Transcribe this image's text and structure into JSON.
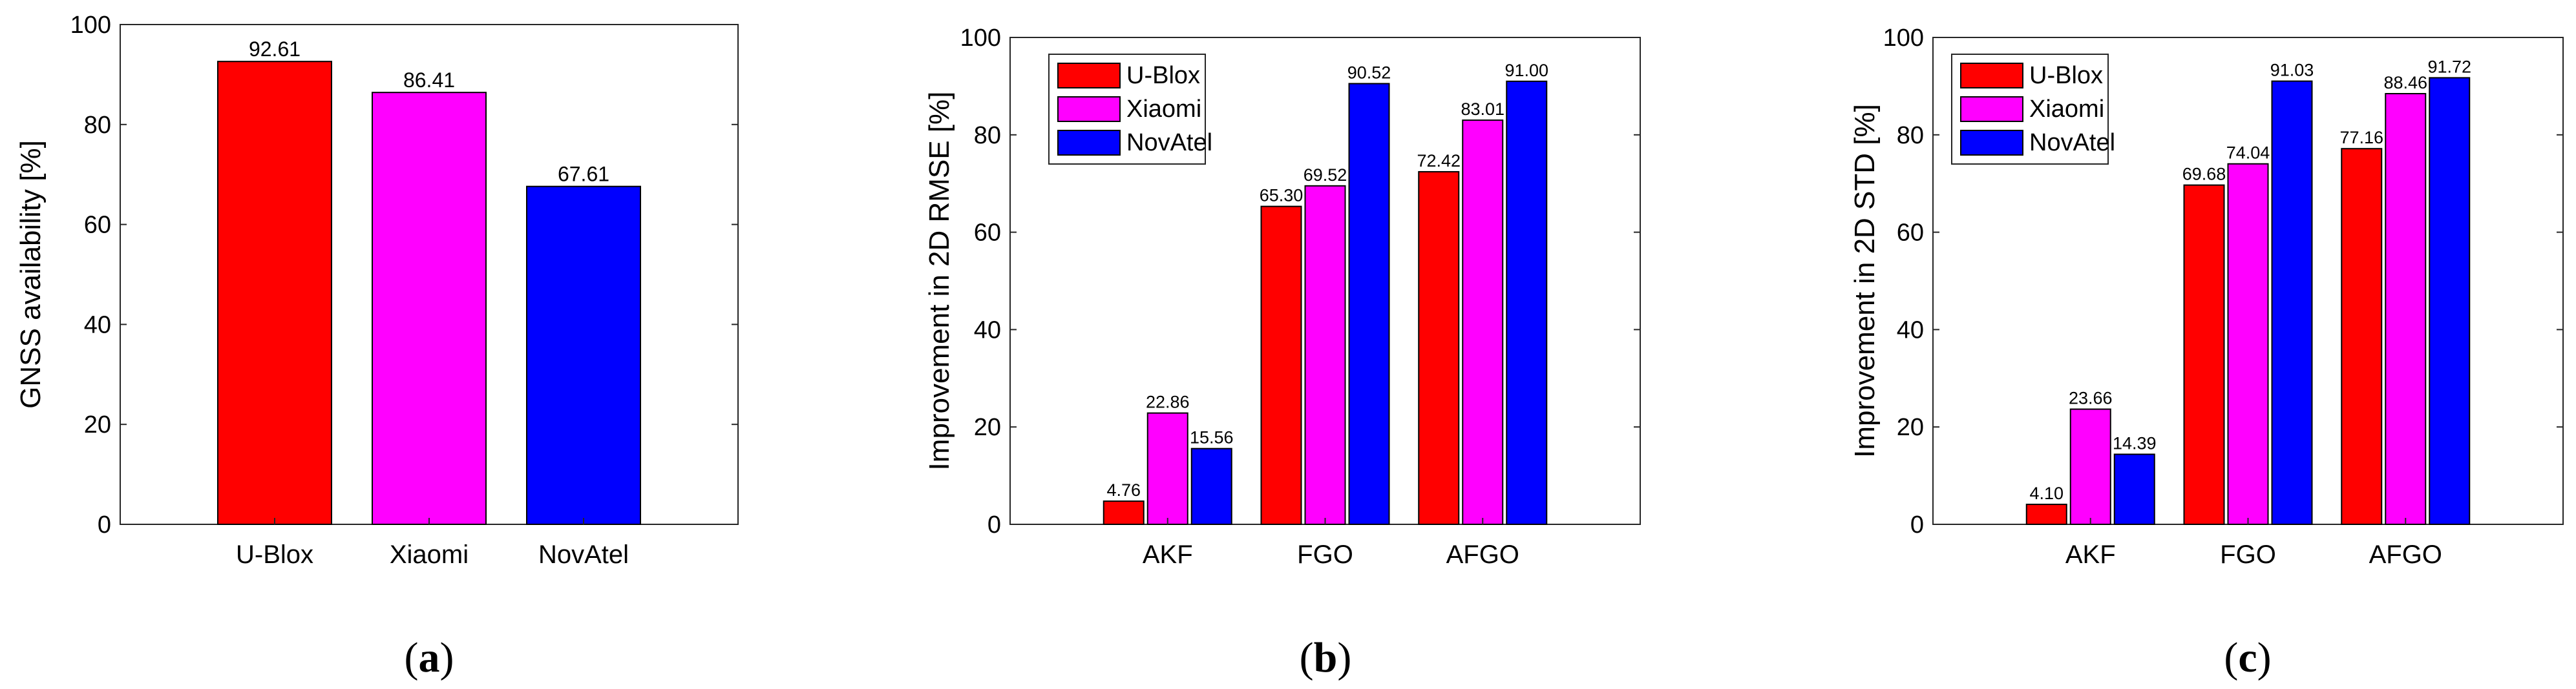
{
  "chart_data": [
    {
      "type": "bar",
      "panel_label": "(a)",
      "ylabel": "GNSS availability [%]",
      "xlabel": "",
      "ylim": [
        0,
        100
      ],
      "yticks": [
        "0",
        "20",
        "40",
        "60",
        "80",
        "100"
      ],
      "categories": [
        "U-Blox",
        "Xiaomi",
        "NovAtel"
      ],
      "values": [
        92.61,
        86.41,
        67.61
      ],
      "value_labels": [
        "92.61",
        "86.41",
        "67.61"
      ],
      "colors": [
        "#ff0000",
        "#ff00ff",
        "#0000ff"
      ],
      "legend": null
    },
    {
      "type": "bar",
      "panel_label": "(b)",
      "ylabel": "Improvement in 2D RMSE [%]",
      "xlabel": "",
      "ylim": [
        0,
        100
      ],
      "yticks": [
        "0",
        "20",
        "40",
        "60",
        "80",
        "100"
      ],
      "categories": [
        "AKF",
        "FGO",
        "AFGO"
      ],
      "series": [
        {
          "name": "U-Blox",
          "color": "#ff0000",
          "values": [
            4.76,
            65.3,
            72.42
          ],
          "labels": [
            "4.76",
            "65.30",
            "72.42"
          ]
        },
        {
          "name": "Xiaomi",
          "color": "#ff00ff",
          "values": [
            22.86,
            69.52,
            83.01
          ],
          "labels": [
            "22.86",
            "69.52",
            "83.01"
          ]
        },
        {
          "name": "NovAtel",
          "color": "#0000ff",
          "values": [
            15.56,
            90.52,
            91.0
          ],
          "labels": [
            "15.56",
            "90.52",
            "91.00"
          ]
        }
      ],
      "legend": "top-left"
    },
    {
      "type": "bar",
      "panel_label": "(c)",
      "ylabel": "Improvement in 2D STD [%]",
      "xlabel": "",
      "ylim": [
        0,
        100
      ],
      "yticks": [
        "0",
        "20",
        "40",
        "60",
        "80",
        "100"
      ],
      "categories": [
        "AKF",
        "FGO",
        "AFGO"
      ],
      "series": [
        {
          "name": "U-Blox",
          "color": "#ff0000",
          "values": [
            4.1,
            69.68,
            77.16
          ],
          "labels": [
            "4.10",
            "69.68",
            "77.16"
          ]
        },
        {
          "name": "Xiaomi",
          "color": "#ff00ff",
          "values": [
            23.66,
            74.04,
            88.46
          ],
          "labels": [
            "23.66",
            "74.04",
            "88.46"
          ]
        },
        {
          "name": "NovAtel",
          "color": "#0000ff",
          "values": [
            14.39,
            91.03,
            91.72
          ],
          "labels": [
            "14.39",
            "91.03",
            "91.72"
          ]
        }
      ],
      "legend": "top-left"
    }
  ]
}
